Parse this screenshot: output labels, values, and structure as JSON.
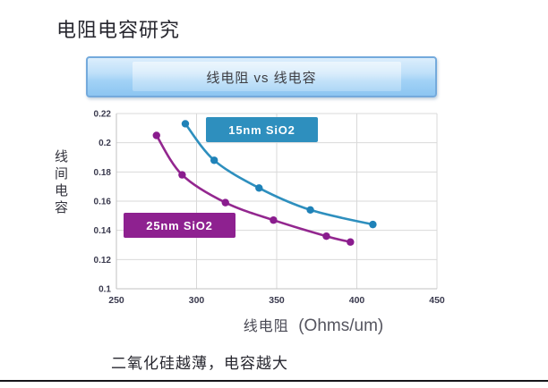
{
  "slide": {
    "title": "电阻电容研究",
    "banner_label": "线电阻 vs 线电容",
    "caption": "二氧化硅越薄，电容越大"
  },
  "chart_data": {
    "type": "line",
    "title": "线电阻 vs 线电容",
    "xlabel_cn": "线电阻",
    "xlabel_unit": "(Ohms/um)",
    "ylabel": "线间电容",
    "xlim": [
      250,
      450
    ],
    "ylim": [
      0.1,
      0.22
    ],
    "x_ticks": [
      "250",
      "300",
      "350",
      "400",
      "450"
    ],
    "y_ticks": [
      "0.22",
      "0.2",
      "0.18",
      "0.16",
      "0.14",
      "0.12",
      "0.1"
    ],
    "grid": true,
    "legend_position": "inline-labels",
    "series": [
      {
        "name": "15nm SiO2",
        "color": "#2E8FBE",
        "marker_color": "#1F82B8",
        "points": [
          [
            293,
            0.213
          ],
          [
            311,
            0.188
          ],
          [
            339,
            0.169
          ],
          [
            371,
            0.154
          ],
          [
            410,
            0.144
          ]
        ]
      },
      {
        "name": "25nm SiO2",
        "color": "#93278F",
        "marker_color": "#8A1C8E",
        "points": [
          [
            275,
            0.205
          ],
          [
            291,
            0.178
          ],
          [
            318,
            0.159
          ],
          [
            348,
            0.147
          ],
          [
            381,
            0.136
          ],
          [
            396,
            0.132
          ]
        ]
      }
    ]
  },
  "colors": {
    "grid_line": "#d9d9d9",
    "axis_line": "#c2c2c2",
    "tick_text": "#3a3a4e",
    "series_blue_box": "#2E8FBE",
    "series_purple_box": "#8E2190"
  }
}
